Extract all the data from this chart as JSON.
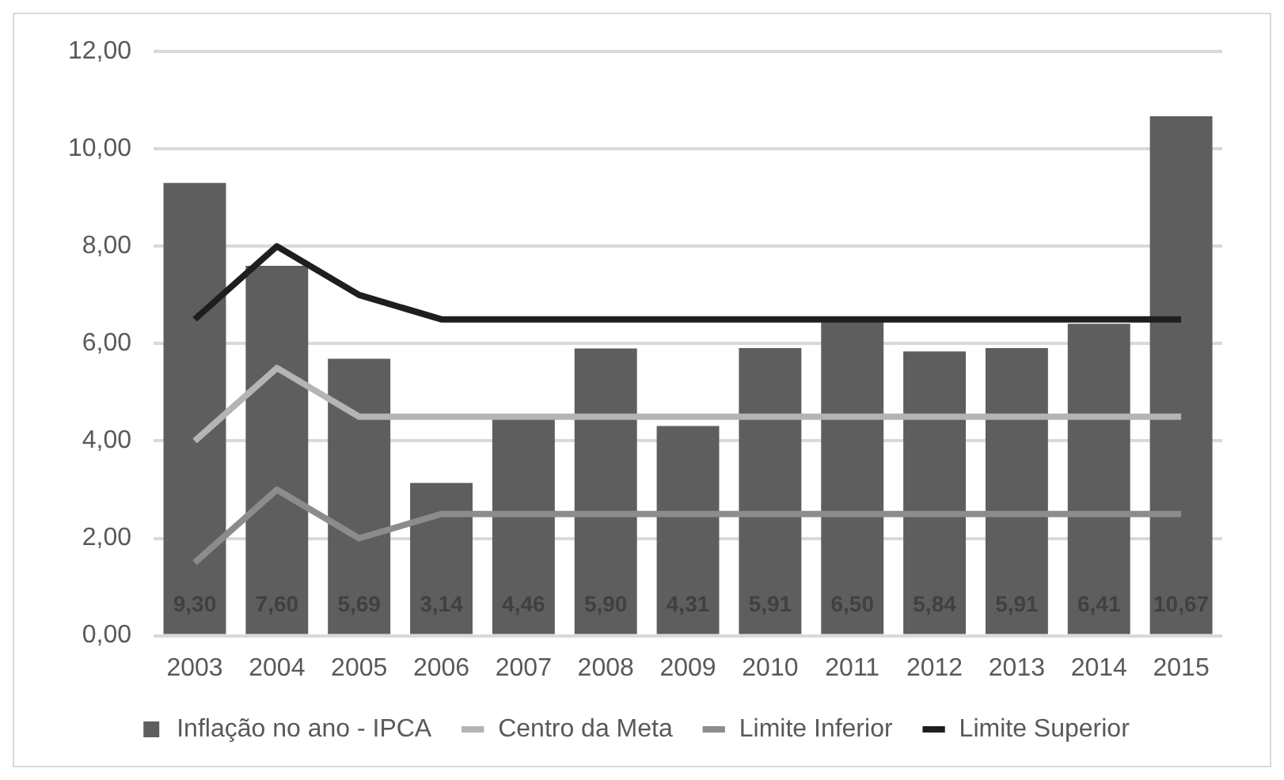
{
  "chart_data": {
    "type": "bar",
    "categories": [
      "2003",
      "2004",
      "2005",
      "2006",
      "2007",
      "2008",
      "2009",
      "2010",
      "2011",
      "2012",
      "2013",
      "2014",
      "2015"
    ],
    "series": [
      {
        "name": "Inflação no ano - IPCA",
        "color": "#5e5e5e",
        "values": [
          9.3,
          7.6,
          5.69,
          3.14,
          4.46,
          5.9,
          4.31,
          5.91,
          6.5,
          5.84,
          5.91,
          6.41,
          10.67
        ],
        "value_labels": [
          "9,30",
          "7,60",
          "5,69",
          "3,14",
          "4,46",
          "5,90",
          "4,31",
          "5,91",
          "6,50",
          "5,84",
          "5,91",
          "6,41",
          "10,67"
        ]
      },
      {
        "name": "Centro da Meta",
        "type": "line",
        "color": "#b4b4b4",
        "values": [
          4.0,
          5.5,
          4.5,
          4.5,
          4.5,
          4.5,
          4.5,
          4.5,
          4.5,
          4.5,
          4.5,
          4.5,
          4.5
        ]
      },
      {
        "name": "Limite Inferior",
        "type": "line",
        "color": "#8c8c8c",
        "values": [
          1.5,
          3.0,
          2.0,
          2.5,
          2.5,
          2.5,
          2.5,
          2.5,
          2.5,
          2.5,
          2.5,
          2.5,
          2.5
        ]
      },
      {
        "name": "Limite Superior",
        "type": "line",
        "color": "#1e1e1e",
        "values": [
          6.5,
          8.0,
          7.0,
          6.5,
          6.5,
          6.5,
          6.5,
          6.5,
          6.5,
          6.5,
          6.5,
          6.5,
          6.5
        ]
      }
    ],
    "ylim": [
      0,
      12
    ],
    "yticks": [
      {
        "value": 0,
        "label": "0,00"
      },
      {
        "value": 2,
        "label": "2,00"
      },
      {
        "value": 4,
        "label": "4,00"
      },
      {
        "value": 6,
        "label": "6,00"
      },
      {
        "value": 8,
        "label": "8,00"
      },
      {
        "value": 10,
        "label": "10,00"
      },
      {
        "value": 12,
        "label": "12,00"
      }
    ],
    "grid": "y",
    "legend": "bottom",
    "marker": "none",
    "line_style": "solid"
  }
}
